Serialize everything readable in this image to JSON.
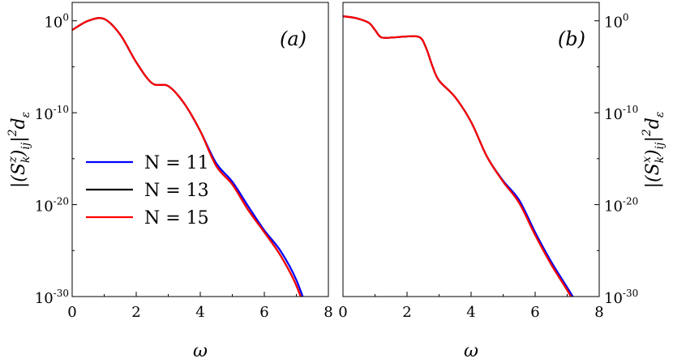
{
  "chart_data": [
    {
      "type": "line",
      "panel_label": "(a)",
      "xlabel": "ω",
      "ylabel": "|(S_k^z)_ij|² d_ε",
      "ylabel_parts": {
        "base": "|(S",
        "sub1": "k",
        "sup1": "z",
        "mid": ")",
        "sub2": "ij",
        "tail": "|",
        "sup2": "2",
        "end": "d",
        "sub3": "ε"
      },
      "xlim": [
        0,
        8
      ],
      "ylim_log10": [
        -30,
        2
      ],
      "yscale": "log",
      "xticks": [
        "0",
        "2",
        "4",
        "6",
        "8"
      ],
      "yticks": [
        {
          "base": "10",
          "exp": "0"
        },
        {
          "base": "10",
          "exp": "-10"
        },
        {
          "base": "10",
          "exp": "-20"
        },
        {
          "base": "10",
          "exp": "-30"
        }
      ],
      "legend": {
        "placement": "center-left",
        "entries": [
          "N = 11",
          "N = 13",
          "N = 15"
        ]
      },
      "series": [
        {
          "name": "N = 11",
          "color": "#0000ff",
          "x": [
            0,
            0.5,
            1.0,
            1.5,
            2.0,
            2.5,
            3.0,
            3.5,
            4.0,
            4.5,
            5.0,
            5.5,
            6.0,
            6.5,
            7.0,
            7.5,
            8.0
          ],
          "log10y": [
            -1.0,
            0.0,
            0.2,
            -1.5,
            -4.5,
            -6.8,
            -7.1,
            -9.0,
            -12.0,
            -15.5,
            -17.5,
            -20.2,
            -22.8,
            -25.0,
            -28.2,
            -33.0,
            -37.8
          ]
        },
        {
          "name": "N = 13",
          "color": "#000000",
          "x": [
            0,
            0.5,
            1.0,
            1.5,
            2.0,
            2.5,
            3.0,
            3.5,
            4.0,
            4.5,
            5.0,
            5.5,
            6.0,
            6.5,
            7.0,
            7.5,
            8.0
          ],
          "log10y": [
            -1.0,
            0.0,
            0.2,
            -1.5,
            -4.5,
            -6.8,
            -7.1,
            -9.0,
            -12.0,
            -15.8,
            -17.8,
            -20.6,
            -23.0,
            -25.5,
            -28.8,
            -33.6,
            -38.4
          ]
        },
        {
          "name": "N = 15",
          "color": "#ff0000",
          "x": [
            0,
            0.5,
            1.0,
            1.5,
            2.0,
            2.5,
            3.0,
            3.5,
            4.0,
            4.5,
            5.0,
            5.5,
            6.0,
            6.5,
            7.0,
            7.5,
            8.0
          ],
          "log10y": [
            -1.0,
            0.0,
            0.2,
            -1.5,
            -4.5,
            -6.8,
            -7.1,
            -9.0,
            -12.0,
            -15.8,
            -17.8,
            -20.6,
            -23.0,
            -25.5,
            -28.8,
            -33.6,
            -38.4
          ]
        }
      ]
    },
    {
      "type": "line",
      "panel_label": "(b)",
      "xlabel": "ω",
      "ylabel": "|(S_k^x)_ij|² d_ε",
      "ylabel_parts": {
        "base": "|(S",
        "sub1": "k",
        "sup1": "x",
        "mid": ")",
        "sub2": "ij",
        "tail": "|",
        "sup2": "2",
        "end": "d",
        "sub3": "ε"
      },
      "xlim": [
        0,
        8
      ],
      "ylim_log10": [
        -30,
        2
      ],
      "yscale": "log",
      "xticks": [
        "0",
        "2",
        "4",
        "6",
        "8"
      ],
      "yticks": [
        {
          "base": "10",
          "exp": "0"
        },
        {
          "base": "10",
          "exp": "-10"
        },
        {
          "base": "10",
          "exp": "-20"
        },
        {
          "base": "10",
          "exp": "-30"
        }
      ],
      "series": [
        {
          "name": "N = 11",
          "color": "#0000ff",
          "x": [
            0,
            0.4,
            0.8,
            1.0,
            1.2,
            1.6,
            2.0,
            2.4,
            2.6,
            2.8,
            3.0,
            3.5,
            4.0,
            4.5,
            5.0,
            5.5,
            6.0,
            6.5,
            7.0,
            7.5,
            8.0
          ],
          "log10y": [
            0.5,
            0.3,
            -0.2,
            -1.0,
            -1.8,
            -1.8,
            -1.7,
            -1.8,
            -3.0,
            -5.0,
            -6.5,
            -8.3,
            -11.0,
            -14.8,
            -17.4,
            -19.5,
            -23.0,
            -26.2,
            -29.0,
            -31.8,
            -34.3
          ]
        },
        {
          "name": "N = 13",
          "color": "#000000",
          "x": [
            0,
            0.4,
            0.8,
            1.0,
            1.2,
            1.6,
            2.0,
            2.4,
            2.6,
            2.8,
            3.0,
            3.5,
            4.0,
            4.5,
            5.0,
            5.5,
            6.0,
            6.5,
            7.0,
            7.5,
            8.0
          ],
          "log10y": [
            0.5,
            0.3,
            -0.2,
            -1.0,
            -1.8,
            -1.8,
            -1.7,
            -1.8,
            -3.0,
            -5.0,
            -6.5,
            -8.3,
            -11.0,
            -14.8,
            -17.5,
            -19.8,
            -23.3,
            -26.5,
            -29.3,
            -32.3,
            -34.9
          ]
        },
        {
          "name": "N = 15",
          "color": "#ff0000",
          "x": [
            0,
            0.4,
            0.8,
            1.0,
            1.2,
            1.6,
            2.0,
            2.4,
            2.6,
            2.8,
            3.0,
            3.5,
            4.0,
            4.5,
            5.0,
            5.5,
            6.0,
            6.5,
            7.0,
            7.5,
            8.0
          ],
          "log10y": [
            0.5,
            0.3,
            -0.2,
            -1.0,
            -1.8,
            -1.8,
            -1.7,
            -1.8,
            -3.0,
            -5.0,
            -6.5,
            -8.3,
            -11.0,
            -14.8,
            -17.5,
            -19.8,
            -23.3,
            -26.5,
            -29.3,
            -32.3,
            -34.9
          ]
        }
      ]
    }
  ]
}
